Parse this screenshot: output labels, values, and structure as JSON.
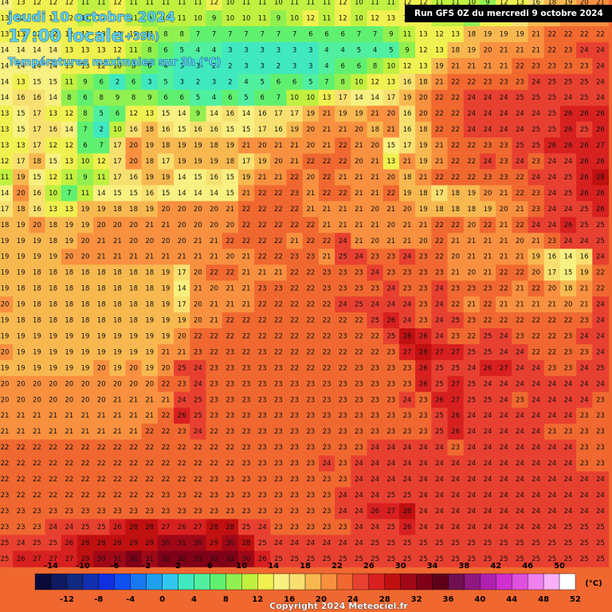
{
  "header": {
    "date": "jeudi 10 octobre 2024",
    "time": "17:00 locale",
    "lead": "(+39h)",
    "subtitle": "Températures maximales sur 3h (°C)",
    "run": "Run GFS 0Z du mercredi 9 octobre 2024"
  },
  "grid": {
    "rows": [
      [
        14,
        13,
        12,
        12,
        12,
        11,
        11,
        12,
        11,
        11,
        11,
        11,
        11,
        12,
        10,
        11,
        11,
        10,
        11,
        11,
        11,
        12,
        10,
        11,
        11,
        12,
        12,
        11,
        11,
        10,
        9,
        12,
        13,
        16,
        18,
        19,
        20,
        21
      ],
      [
        13,
        12,
        12,
        12,
        12,
        11,
        12,
        12,
        11,
        9,
        10,
        11,
        10,
        9,
        10,
        10,
        11,
        9,
        10,
        12,
        11,
        12,
        10,
        12,
        13,
        12,
        12,
        10,
        10,
        9,
        12,
        13,
        16,
        18,
        19,
        20,
        21,
        21
      ],
      [
        13,
        13,
        12,
        12,
        12,
        12,
        13,
        12,
        12,
        11,
        8,
        8,
        7,
        7,
        7,
        7,
        7,
        7,
        7,
        6,
        6,
        6,
        7,
        7,
        9,
        11,
        13,
        12,
        13,
        18,
        19,
        19,
        19,
        21,
        22,
        22,
        22,
        22
      ],
      [
        14,
        14,
        14,
        14,
        13,
        13,
        13,
        12,
        11,
        8,
        6,
        5,
        4,
        4,
        3,
        3,
        3,
        3,
        3,
        3,
        4,
        4,
        5,
        4,
        5,
        9,
        12,
        13,
        18,
        19,
        20,
        21,
        21,
        21,
        22,
        23,
        24,
        24
      ],
      [
        14,
        14,
        14,
        14,
        13,
        13,
        12,
        10,
        8,
        6,
        4,
        3,
        3,
        2,
        2,
        3,
        3,
        2,
        3,
        3,
        4,
        6,
        6,
        8,
        10,
        12,
        13,
        19,
        21,
        21,
        21,
        21,
        22,
        23,
        23,
        23,
        23,
        24
      ],
      [
        14,
        13,
        15,
        15,
        11,
        9,
        6,
        2,
        6,
        3,
        5,
        3,
        2,
        3,
        2,
        4,
        5,
        6,
        6,
        5,
        7,
        8,
        10,
        12,
        13,
        16,
        18,
        21,
        22,
        22,
        23,
        23,
        23,
        24,
        25,
        25,
        25,
        24
      ],
      [
        14,
        16,
        16,
        14,
        8,
        6,
        8,
        9,
        8,
        9,
        6,
        6,
        5,
        4,
        6,
        5,
        6,
        7,
        10,
        10,
        13,
        17,
        14,
        14,
        17,
        19,
        20,
        22,
        22,
        24,
        24,
        24,
        25,
        25,
        25,
        24,
        25,
        24
      ],
      [
        13,
        15,
        17,
        13,
        12,
        8,
        5,
        6,
        12,
        13,
        15,
        14,
        9,
        14,
        16,
        14,
        16,
        17,
        17,
        19,
        21,
        19,
        19,
        21,
        20,
        16,
        20,
        22,
        22,
        24,
        24,
        24,
        24,
        24,
        25,
        26,
        26,
        26
      ],
      [
        13,
        15,
        17,
        16,
        14,
        7,
        2,
        10,
        16,
        18,
        16,
        15,
        16,
        16,
        15,
        15,
        17,
        16,
        19,
        20,
        21,
        21,
        20,
        18,
        21,
        16,
        18,
        22,
        22,
        24,
        24,
        24,
        24,
        25,
        25,
        26,
        25,
        26
      ],
      [
        13,
        13,
        17,
        12,
        12,
        6,
        7,
        17,
        20,
        19,
        18,
        19,
        19,
        18,
        19,
        21,
        20,
        21,
        21,
        20,
        21,
        22,
        21,
        20,
        15,
        17,
        19,
        21,
        22,
        22,
        23,
        23,
        25,
        25,
        26,
        26,
        26,
        27
      ],
      [
        12,
        17,
        18,
        15,
        13,
        10,
        12,
        17,
        20,
        18,
        17,
        19,
        19,
        19,
        18,
        17,
        19,
        20,
        21,
        22,
        22,
        22,
        20,
        21,
        13,
        21,
        19,
        21,
        22,
        22,
        24,
        23,
        24,
        23,
        24,
        24,
        26,
        26
      ],
      [
        11,
        19,
        15,
        12,
        11,
        9,
        11,
        17,
        16,
        19,
        19,
        14,
        15,
        16,
        15,
        19,
        21,
        21,
        22,
        20,
        22,
        21,
        21,
        21,
        20,
        18,
        21,
        22,
        22,
        22,
        23,
        23,
        22,
        24,
        24,
        25,
        26,
        28
      ],
      [
        14,
        20,
        16,
        10,
        7,
        11,
        14,
        15,
        15,
        16,
        15,
        14,
        14,
        14,
        15,
        21,
        22,
        22,
        23,
        21,
        22,
        22,
        21,
        21,
        22,
        19,
        18,
        17,
        18,
        19,
        20,
        21,
        22,
        23,
        24,
        25,
        26,
        26
      ],
      [
        17,
        18,
        16,
        13,
        13,
        19,
        19,
        18,
        18,
        19,
        20,
        20,
        20,
        20,
        21,
        22,
        22,
        22,
        22,
        21,
        21,
        21,
        21,
        20,
        21,
        20,
        19,
        18,
        18,
        18,
        19,
        20,
        21,
        23,
        24,
        24,
        25,
        26
      ],
      [
        18,
        19,
        20,
        18,
        19,
        19,
        20,
        20,
        20,
        21,
        21,
        20,
        20,
        20,
        20,
        22,
        22,
        22,
        22,
        22,
        21,
        21,
        21,
        21,
        20,
        21,
        21,
        22,
        22,
        20,
        22,
        21,
        22,
        24,
        24,
        26,
        25,
        25
      ],
      [
        19,
        19,
        19,
        18,
        19,
        20,
        21,
        21,
        20,
        20,
        20,
        20,
        21,
        21,
        22,
        22,
        22,
        22,
        21,
        22,
        22,
        24,
        21,
        20,
        21,
        21,
        20,
        22,
        21,
        21,
        21,
        21,
        20,
        21,
        23,
        24,
        24,
        25
      ],
      [
        19,
        19,
        19,
        19,
        20,
        20,
        21,
        21,
        21,
        21,
        21,
        21,
        21,
        21,
        20,
        21,
        22,
        22,
        23,
        23,
        21,
        25,
        24,
        23,
        23,
        24,
        23,
        22,
        20,
        21,
        21,
        21,
        21,
        19,
        16,
        14,
        16,
        24
      ],
      [
        19,
        19,
        18,
        18,
        18,
        18,
        18,
        18,
        18,
        18,
        19,
        17,
        20,
        22,
        22,
        21,
        21,
        21,
        22,
        22,
        23,
        23,
        23,
        24,
        23,
        23,
        23,
        23,
        21,
        20,
        21,
        22,
        22,
        20,
        17,
        15,
        19,
        22
      ],
      [
        19,
        18,
        18,
        18,
        18,
        18,
        18,
        18,
        18,
        18,
        19,
        14,
        21,
        20,
        21,
        21,
        23,
        23,
        22,
        22,
        23,
        23,
        23,
        23,
        24,
        23,
        23,
        24,
        23,
        23,
        23,
        22,
        21,
        22,
        20,
        18,
        21,
        22
      ],
      [
        20,
        19,
        18,
        18,
        18,
        18,
        18,
        18,
        18,
        18,
        19,
        17,
        20,
        21,
        21,
        21,
        22,
        22,
        22,
        22,
        22,
        24,
        25,
        24,
        24,
        24,
        23,
        24,
        22,
        21,
        22,
        21,
        21,
        21,
        21,
        20,
        21,
        24
      ],
      [
        19,
        18,
        18,
        18,
        18,
        18,
        18,
        18,
        18,
        19,
        19,
        19,
        20,
        21,
        22,
        22,
        22,
        22,
        22,
        22,
        22,
        22,
        22,
        25,
        26,
        24,
        23,
        24,
        25,
        23,
        22,
        22,
        22,
        22,
        22,
        22,
        23,
        24
      ],
      [
        19,
        19,
        19,
        19,
        19,
        19,
        19,
        19,
        19,
        19,
        19,
        20,
        22,
        22,
        22,
        22,
        22,
        22,
        22,
        22,
        22,
        23,
        22,
        22,
        25,
        28,
        26,
        24,
        23,
        22,
        25,
        24,
        23,
        22,
        22,
        23,
        24,
        24
      ],
      [
        20,
        19,
        19,
        19,
        19,
        19,
        19,
        19,
        19,
        19,
        21,
        21,
        23,
        22,
        23,
        22,
        23,
        22,
        22,
        22,
        22,
        22,
        22,
        22,
        23,
        27,
        28,
        27,
        27,
        25,
        25,
        24,
        24,
        22,
        22,
        23,
        23,
        24
      ],
      [
        19,
        19,
        19,
        19,
        19,
        19,
        20,
        19,
        20,
        19,
        20,
        25,
        24,
        23,
        23,
        23,
        23,
        23,
        22,
        22,
        22,
        22,
        23,
        23,
        23,
        23,
        26,
        25,
        25,
        24,
        26,
        27,
        24,
        24,
        23,
        23,
        24,
        25
      ],
      [
        20,
        20,
        20,
        20,
        20,
        20,
        20,
        20,
        20,
        20,
        22,
        23,
        24,
        23,
        23,
        23,
        23,
        23,
        23,
        23,
        23,
        23,
        23,
        23,
        23,
        23,
        26,
        25,
        27,
        25,
        24,
        24,
        24,
        24,
        24,
        24,
        24,
        24
      ],
      [
        20,
        20,
        20,
        20,
        20,
        20,
        20,
        21,
        21,
        21,
        21,
        24,
        25,
        23,
        23,
        23,
        23,
        23,
        23,
        23,
        23,
        23,
        23,
        23,
        23,
        24,
        23,
        26,
        27,
        25,
        25,
        24,
        23,
        24,
        24,
        24,
        24,
        23
      ],
      [
        21,
        21,
        21,
        21,
        21,
        21,
        21,
        21,
        21,
        21,
        22,
        26,
        25,
        23,
        23,
        23,
        23,
        23,
        23,
        23,
        23,
        23,
        23,
        23,
        23,
        23,
        23,
        25,
        26,
        24,
        24,
        24,
        24,
        24,
        24,
        24,
        23,
        23
      ],
      [
        21,
        21,
        21,
        21,
        21,
        21,
        21,
        21,
        21,
        22,
        22,
        23,
        24,
        22,
        23,
        23,
        23,
        23,
        23,
        23,
        23,
        23,
        23,
        23,
        23,
        23,
        23,
        25,
        26,
        24,
        24,
        24,
        24,
        24,
        23,
        23,
        23,
        23
      ],
      [
        22,
        22,
        22,
        22,
        22,
        22,
        22,
        22,
        22,
        22,
        22,
        22,
        22,
        22,
        22,
        23,
        23,
        23,
        23,
        23,
        23,
        23,
        23,
        24,
        24,
        24,
        24,
        24,
        23,
        24,
        24,
        24,
        24,
        24,
        24,
        24,
        23,
        23
      ],
      [
        22,
        22,
        22,
        22,
        22,
        22,
        22,
        22,
        22,
        22,
        22,
        22,
        22,
        22,
        22,
        23,
        23,
        23,
        23,
        23,
        24,
        23,
        24,
        24,
        24,
        24,
        24,
        24,
        24,
        24,
        24,
        24,
        24,
        24,
        24,
        24,
        23,
        23
      ],
      [
        22,
        22,
        22,
        22,
        22,
        22,
        22,
        22,
        22,
        22,
        22,
        22,
        22,
        23,
        23,
        23,
        23,
        23,
        23,
        23,
        23,
        23,
        24,
        24,
        24,
        24,
        24,
        24,
        24,
        24,
        24,
        24,
        24,
        24,
        24,
        24,
        24,
        24
      ],
      [
        23,
        22,
        22,
        22,
        22,
        22,
        22,
        22,
        22,
        22,
        23,
        23,
        22,
        23,
        23,
        23,
        23,
        23,
        23,
        23,
        23,
        24,
        24,
        24,
        25,
        25,
        24,
        24,
        24,
        24,
        24,
        24,
        24,
        24,
        24,
        24,
        24,
        24
      ],
      [
        23,
        23,
        23,
        23,
        23,
        23,
        23,
        23,
        23,
        23,
        23,
        23,
        23,
        23,
        23,
        23,
        23,
        23,
        23,
        23,
        23,
        24,
        24,
        26,
        27,
        28,
        24,
        24,
        24,
        24,
        24,
        24,
        24,
        24,
        24,
        24,
        24,
        24
      ],
      [
        23,
        23,
        23,
        24,
        24,
        25,
        25,
        26,
        28,
        28,
        27,
        26,
        27,
        28,
        28,
        25,
        24,
        23,
        23,
        23,
        23,
        23,
        24,
        24,
        25,
        26,
        24,
        24,
        24,
        24,
        24,
        24,
        24,
        24,
        24,
        25,
        25,
        25
      ],
      [
        25,
        24,
        25,
        25,
        26,
        28,
        28,
        28,
        29,
        29,
        30,
        31,
        30,
        29,
        30,
        28,
        25,
        24,
        24,
        24,
        24,
        24,
        24,
        25,
        25,
        25,
        25,
        25,
        25,
        25,
        25,
        25,
        25,
        25,
        25,
        25,
        25,
        25
      ],
      [
        25,
        26,
        27,
        27,
        27,
        29,
        30,
        31,
        32,
        31,
        32,
        32,
        33,
        32,
        32,
        30,
        26,
        25,
        25,
        25,
        25,
        25,
        25,
        25,
        25,
        25,
        25,
        25,
        25,
        25,
        25,
        25,
        25,
        25,
        25,
        25,
        25,
        25
      ]
    ]
  },
  "legend": {
    "top_labels": [
      -14,
      -10,
      -6,
      -2,
      2,
      6,
      10,
      14,
      18,
      22,
      26,
      30,
      34,
      38,
      42,
      46,
      50
    ],
    "bottom_labels": [
      -12,
      -8,
      -4,
      0,
      4,
      8,
      12,
      16,
      20,
      24,
      28,
      32,
      36,
      40,
      44,
      48,
      52
    ],
    "unit": "(°C)",
    "colors": [
      "#0a0a3a",
      "#101a60",
      "#102a80",
      "#1030b0",
      "#1030e0",
      "#1050f0",
      "#1878f0",
      "#20a0f0",
      "#30c8f0",
      "#40e8c0",
      "#50f0a0",
      "#60f070",
      "#90f050",
      "#c0f040",
      "#f0f050",
      "#f8f080",
      "#f8e070",
      "#f8b850",
      "#f89040",
      "#f06830",
      "#e84030",
      "#d82020",
      "#c01010",
      "#a00818",
      "#800018",
      "#600018",
      "#701050",
      "#901880",
      "#b020b0",
      "#d030d0",
      "#e050e0",
      "#f080f0",
      "#f8b0f8",
      "#ffffff"
    ]
  },
  "footer": {
    "copyright": "Copyright 2024 Meteociel.fr"
  }
}
